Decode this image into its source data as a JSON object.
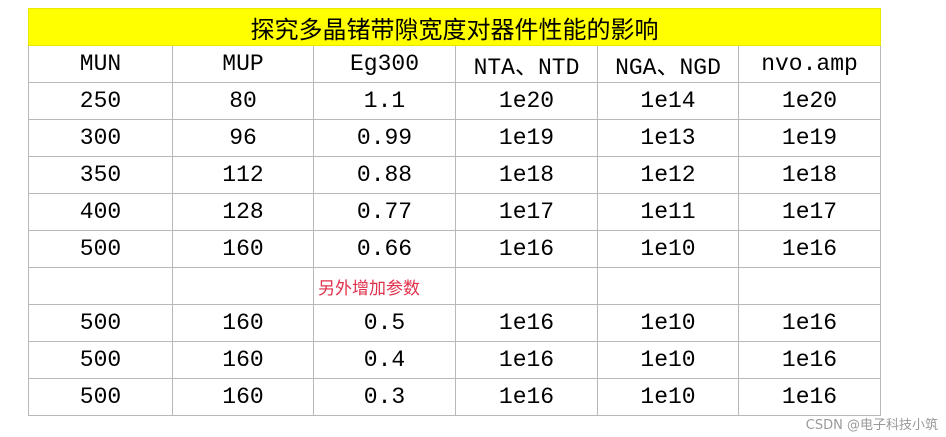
{
  "table": {
    "title": "探究多晶锗带隙宽度对器件性能的影响",
    "header": [
      "MUN",
      "MUP",
      "Eg300",
      "NTA、NTD",
      "NGA、NGD",
      "nvo.amp"
    ],
    "rows": [
      [
        "250",
        "80",
        "1.1",
        "1e20",
        "1e14",
        "1e20"
      ],
      [
        "300",
        "96",
        "0.99",
        "1e19",
        "1e13",
        "1e19"
      ],
      [
        "350",
        "112",
        "0.88",
        "1e18",
        "1e12",
        "1e18"
      ],
      [
        "400",
        "128",
        "0.77",
        "1e17",
        "1e11",
        "1e17"
      ],
      [
        "500",
        "160",
        "0.66",
        "1e16",
        "1e10",
        "1e16"
      ]
    ],
    "note": "另外增加参数",
    "extra_rows": [
      [
        "500",
        "160",
        "0.5",
        "1e16",
        "1e10",
        "1e16"
      ],
      [
        "500",
        "160",
        "0.4",
        "1e16",
        "1e10",
        "1e16"
      ],
      [
        "500",
        "160",
        "0.3",
        "1e16",
        "1e10",
        "1e16"
      ]
    ]
  },
  "watermark": "CSDN @电子科技小筑"
}
